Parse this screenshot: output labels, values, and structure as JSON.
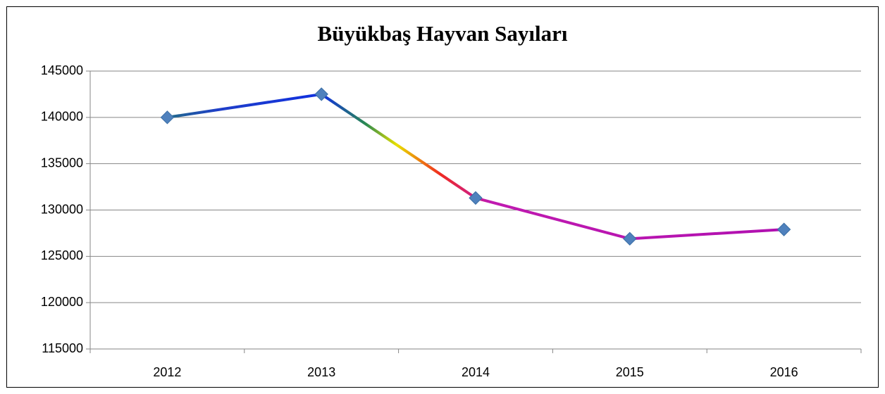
{
  "chart_data": {
    "type": "line",
    "title": "Büyükbaş Hayvan Sayıları",
    "categories": [
      "2012",
      "2013",
      "2014",
      "2015",
      "2016"
    ],
    "series": [
      {
        "name": "Büyükbaş Hayvan Sayıları",
        "color": "#4f81bd",
        "values": [
          140000,
          142500,
          131300,
          126900,
          127900
        ]
      }
    ],
    "ylim": [
      115000,
      145000
    ],
    "yticks": [
      115000,
      120000,
      125000,
      130000,
      135000,
      140000,
      145000
    ],
    "grid": true,
    "legend": false
  }
}
